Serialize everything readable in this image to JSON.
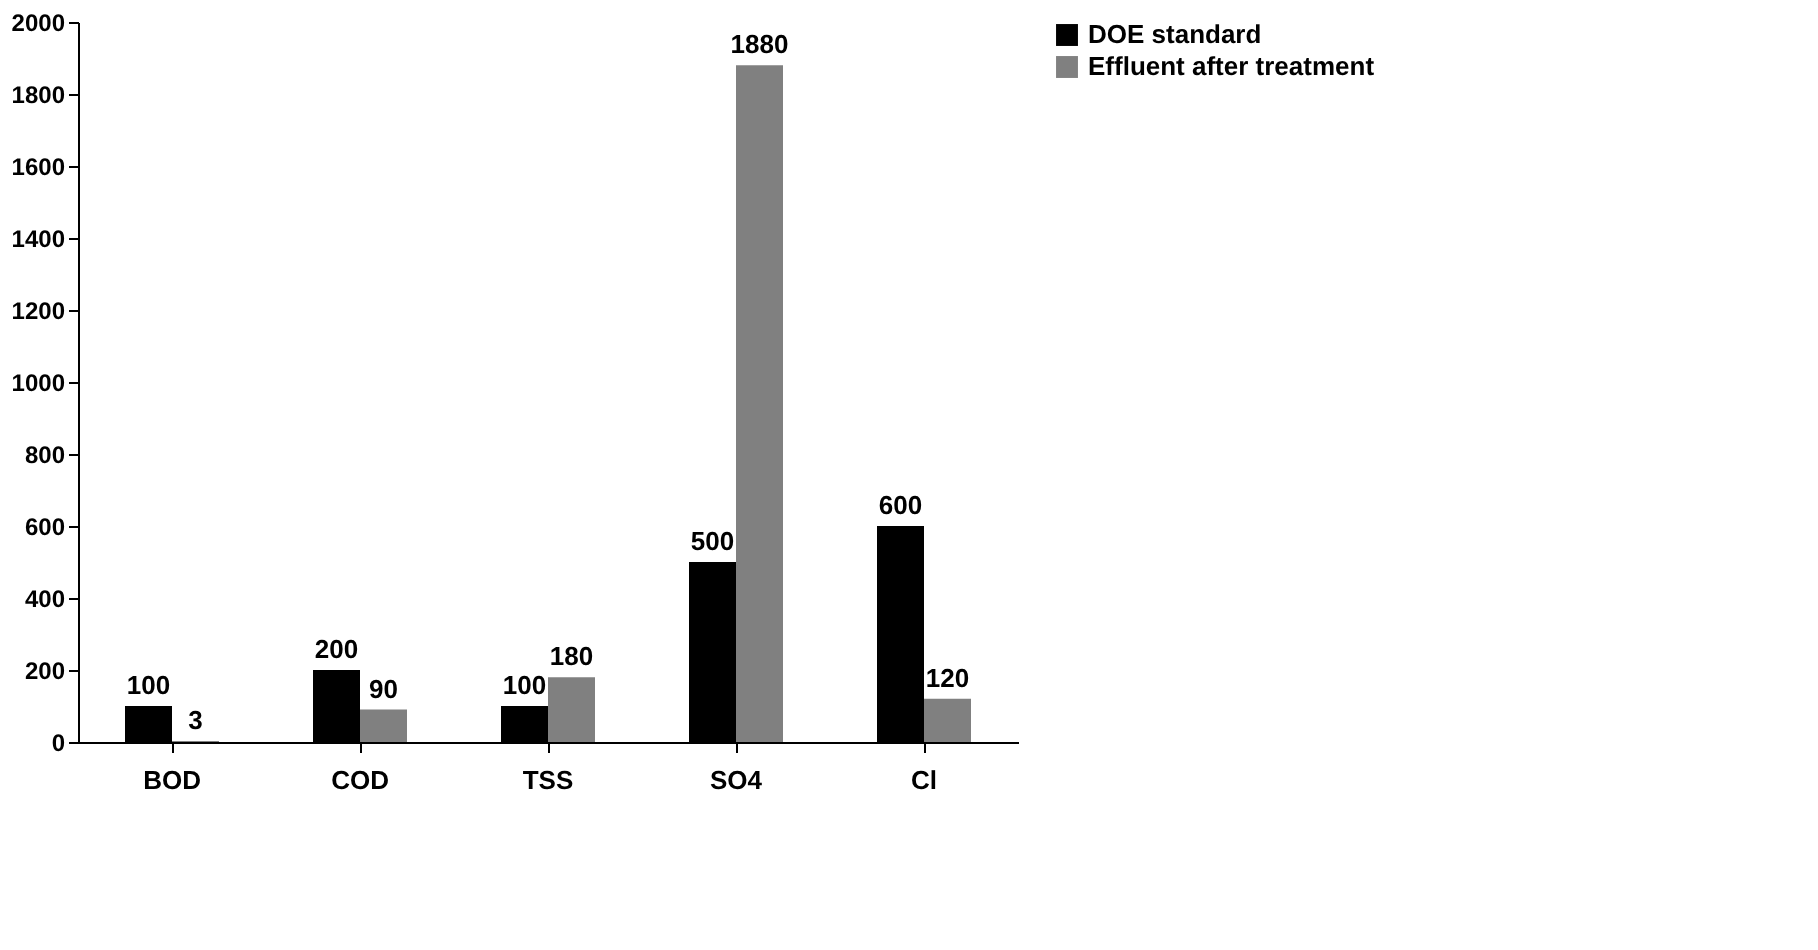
{
  "chart_data": {
    "type": "bar",
    "categories": [
      "BOD",
      "COD",
      "TSS",
      "SO4",
      "Cl"
    ],
    "series": [
      {
        "name": "DOE standard",
        "color": "#000000",
        "values": [
          100,
          200,
          100,
          500,
          600
        ]
      },
      {
        "name": "Effluent after treatment",
        "color": "#808080",
        "values": [
          3,
          90,
          180,
          1880,
          120
        ]
      }
    ],
    "ylim": [
      0,
      2000
    ],
    "yticks": [
      0,
      200,
      400,
      600,
      800,
      1000,
      1200,
      1400,
      1600,
      1800,
      2000
    ],
    "grid": false,
    "legend": "right",
    "data_labels": true
  }
}
